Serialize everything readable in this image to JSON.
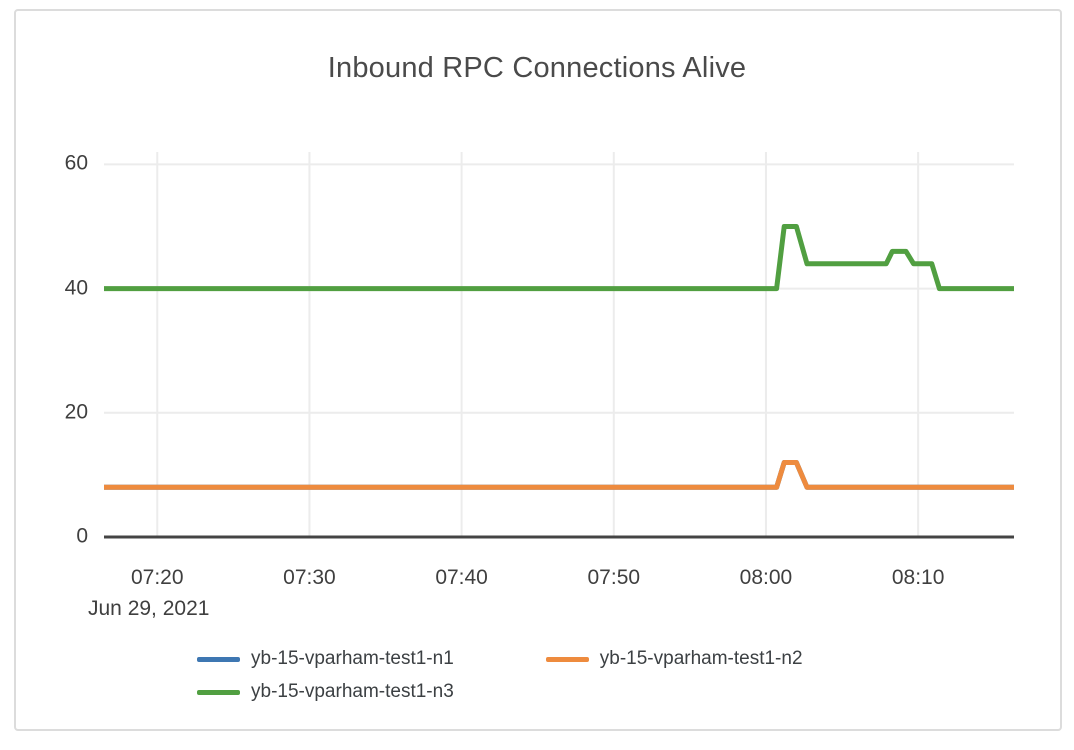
{
  "colors": {
    "grid": "#ececec",
    "zero_axis": "#444444",
    "text": "#3f3f3f",
    "card_border": "#dcdcdc",
    "background": "#ffffff"
  },
  "chart_data": {
    "type": "line",
    "title": "Inbound RPC Connections Alive",
    "legend_position": "bottom-center",
    "grid": true,
    "x_axis": {
      "date_label": "Jun 29, 2021",
      "unit": "minutes after 07:00",
      "range": [
        16.5,
        76.3
      ],
      "ticks": [
        {
          "pos": 20,
          "label": "07:20"
        },
        {
          "pos": 30,
          "label": "07:30"
        },
        {
          "pos": 40,
          "label": "07:40"
        },
        {
          "pos": 50,
          "label": "07:50"
        },
        {
          "pos": 60,
          "label": "08:00"
        },
        {
          "pos": 70,
          "label": "08:10"
        }
      ]
    },
    "y_axis": {
      "range": [
        0,
        62
      ],
      "ticks": [
        {
          "pos": 0,
          "label": "0"
        },
        {
          "pos": 20,
          "label": "20"
        },
        {
          "pos": 40,
          "label": "40"
        },
        {
          "pos": 60,
          "label": "60"
        }
      ],
      "gridline_values": [
        20,
        40,
        60
      ]
    },
    "series": [
      {
        "name": "yb-15-vparham-test1-n1",
        "color": "#3e77b2",
        "points": [
          [
            16.5,
            8
          ],
          [
            60.7,
            8
          ],
          [
            61.2,
            12
          ],
          [
            62.0,
            12
          ],
          [
            62.7,
            8
          ],
          [
            76.3,
            8
          ]
        ]
      },
      {
        "name": "yb-15-vparham-test1-n2",
        "color": "#ee8b3e",
        "points": [
          [
            16.5,
            8
          ],
          [
            60.7,
            8
          ],
          [
            61.2,
            12
          ],
          [
            62.0,
            12
          ],
          [
            62.7,
            8
          ],
          [
            76.3,
            8
          ]
        ]
      },
      {
        "name": "yb-15-vparham-test1-n3",
        "color": "#519f41",
        "points": [
          [
            16.5,
            40
          ],
          [
            60.7,
            40
          ],
          [
            61.2,
            50
          ],
          [
            62.0,
            50
          ],
          [
            62.7,
            44
          ],
          [
            67.9,
            44
          ],
          [
            68.3,
            46
          ],
          [
            69.2,
            46
          ],
          [
            69.7,
            44
          ],
          [
            70.9,
            44
          ],
          [
            71.4,
            40
          ],
          [
            76.3,
            40
          ]
        ]
      }
    ]
  }
}
